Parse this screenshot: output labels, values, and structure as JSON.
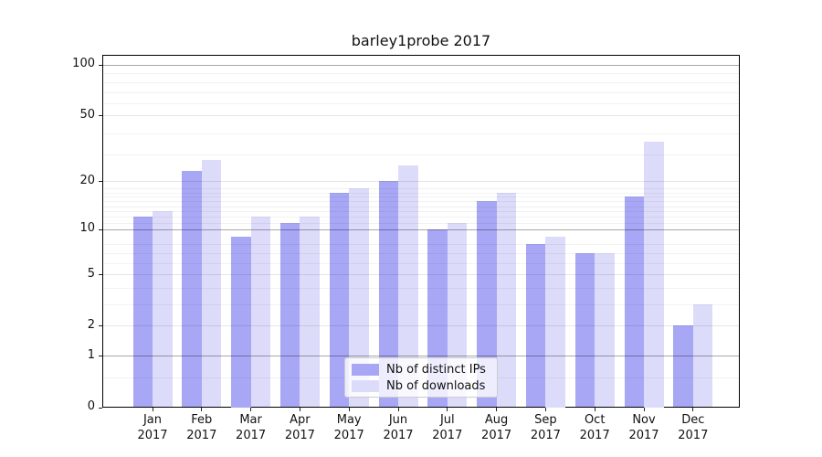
{
  "chart_data": {
    "type": "bar",
    "title": "barley1probe 2017",
    "x": [
      {
        "month": "Jan",
        "year": "2017"
      },
      {
        "month": "Feb",
        "year": "2017"
      },
      {
        "month": "Mar",
        "year": "2017"
      },
      {
        "month": "Apr",
        "year": "2017"
      },
      {
        "month": "May",
        "year": "2017"
      },
      {
        "month": "Jun",
        "year": "2017"
      },
      {
        "month": "Jul",
        "year": "2017"
      },
      {
        "month": "Aug",
        "year": "2017"
      },
      {
        "month": "Sep",
        "year": "2017"
      },
      {
        "month": "Oct",
        "year": "2017"
      },
      {
        "month": "Nov",
        "year": "2017"
      },
      {
        "month": "Dec",
        "year": "2017"
      }
    ],
    "series": [
      {
        "name": "Nb of distinct IPs",
        "color": "#a7a7f5",
        "values": [
          12,
          23,
          9,
          11,
          17,
          20,
          10,
          15,
          8,
          7,
          16,
          2
        ]
      },
      {
        "name": "Nb of downloads",
        "color": "#dcdcfa",
        "values": [
          13,
          27,
          12,
          12,
          18,
          25,
          11,
          17,
          9,
          7,
          35,
          3
        ]
      }
    ],
    "y_axis": {
      "scale": "log(1+x)",
      "tick_values": [
        0,
        1,
        2,
        5,
        10,
        20,
        50,
        100
      ],
      "top_value": 115,
      "strong_gridlines_at": [
        1,
        10,
        100
      ]
    },
    "legend": {
      "position": "lower-center"
    },
    "grid": true,
    "background": "#ffffff"
  }
}
